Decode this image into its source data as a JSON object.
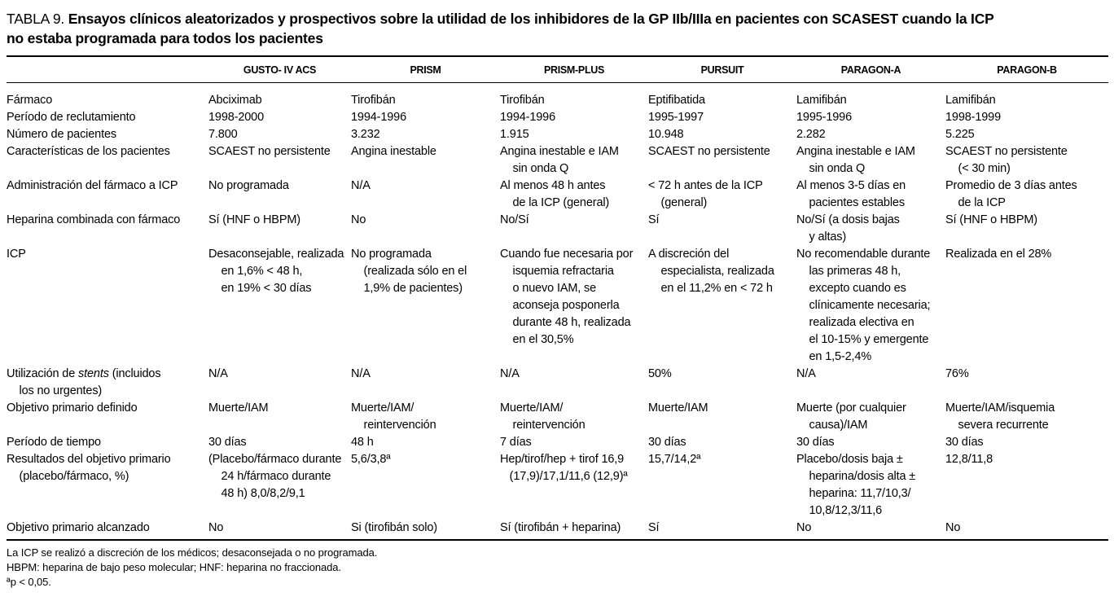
{
  "title": {
    "prefix": "TABLA 9. ",
    "text_bold": "Ensayos clínicos aleatorizados y prospectivos sobre la utilidad de los inhibidores de la GP IIb/IIIa en pacientes con SCASEST cuando la ICP\nno estaba programada para todos los pacientes"
  },
  "columns": [
    "GUSTO- IV ACS",
    "PRISM",
    "PRISM-PLUS",
    "PURSUIT",
    "PARAGON-A",
    "PARAGON-B"
  ],
  "rows": [
    {
      "label": "Fármaco",
      "cells": [
        "Abciximab",
        "Tirofibán",
        "Tirofibán",
        "Eptifibatida",
        "Lamifibán",
        "Lamifibán"
      ]
    },
    {
      "label": "Período de reclutamiento",
      "cells": [
        "1998-2000",
        "1994-1996",
        "1994-1996",
        "1995-1997",
        "1995-1996",
        "1998-1999"
      ]
    },
    {
      "label": "Número de pacientes",
      "cells": [
        "7.800",
        "3.232",
        "1.915",
        "10.948",
        "2.282",
        "5.225"
      ]
    },
    {
      "label": "Características de los pacientes",
      "cells": [
        "SCAEST no persistente",
        "Angina inestable",
        "Angina inestable e IAM\n    sin onda Q",
        "SCAEST no persistente",
        "Angina inestable e IAM\n    sin onda Q",
        "SCAEST no persistente\n    (< 30 min)"
      ]
    },
    {
      "label": "Administración del fármaco a ICP",
      "cells": [
        "No programada",
        "N/A",
        "Al menos 48 h antes\n    de la ICP (general)",
        "< 72 h antes de la ICP\n    (general)",
        "Al menos 3-5 días en\n    pacientes estables",
        "Promedio de 3 días antes\n    de la ICP"
      ]
    },
    {
      "label": "Heparina combinada con fármaco",
      "cells": [
        "Sí (HNF o HBPM)",
        "No",
        "No/Sí",
        "Sí",
        "No/Sí (a dosis bajas\n    y altas)",
        "Sí (HNF o HBPM)"
      ]
    },
    {
      "label": "ICP",
      "cells": [
        "Desaconsejable, realizada\n    en 1,6% < 48 h,\n    en 19% < 30 días",
        "No programada\n    (realizada sólo en el\n    1,9% de pacientes)",
        "Cuando fue necesaria por\n    isquemia refractaria\n    o nuevo IAM, se\n    aconseja posponerla\n    durante 48 h, realizada\n    en el 30,5%",
        "A discreción del\n    especialista, realizada\n    en el 11,2% en < 72 h",
        "No recomendable durante\n    las primeras 48 h,\n    excepto cuando es\n    clínicamente necesaria;\n    realizada electiva en\n    el 10-15% y emergente\n    en 1,5-2,4%",
        "Realizada en el 28%"
      ]
    },
    {
      "label_pre": "Utilización de ",
      "label_italic": "stents",
      "label_post": " (incluidos\n    los no urgentes)",
      "cells": [
        "N/A",
        "N/A",
        "N/A",
        "50%",
        "N/A",
        "76%"
      ]
    },
    {
      "label": "Objetivo primario definido",
      "cells": [
        "Muerte/IAM",
        "Muerte/IAM/\n    reintervención",
        "Muerte/IAM/\n    reintervención",
        "Muerte/IAM",
        "Muerte (por cualquier\n    causa)/IAM",
        "Muerte/IAM/isquemia\n    severa recurrente"
      ]
    },
    {
      "label": "Período de tiempo",
      "cells": [
        "30 días",
        "48 h",
        "7 días",
        "30 días",
        "30 días",
        "30 días"
      ]
    },
    {
      "label": "Resultados del objetivo primario\n    (placebo/fármaco, %)",
      "cells": [
        "(Placebo/fármaco durante\n    24 h/fármaco durante\n    48 h) 8,0/8,2/9,1",
        "5,6/3,8ª",
        "Hep/tirof/hep + tirof 16,9\n   (17,9)/17,1/11,6 (12,9)ª",
        "15,7/14,2ª",
        "Placebo/dosis baja ±\n    heparina/dosis alta ±\n    heparina: 11,7/10,3/\n    10,8/12,3/11,6",
        "12,8/11,8"
      ]
    },
    {
      "label": "Objetivo primario alcanzado",
      "cells": [
        "No",
        "Si (tirofibán solo)",
        "Sí (tirofibán + heparina)",
        "Sí",
        "No",
        "No"
      ]
    }
  ],
  "footnotes": [
    "La ICP se realizó a discreción de los médicos; desaconsejada o no programada.",
    "HBPM: heparina de bajo peso molecular; HNF: heparina no fraccionada.",
    "ªp < 0,05."
  ]
}
